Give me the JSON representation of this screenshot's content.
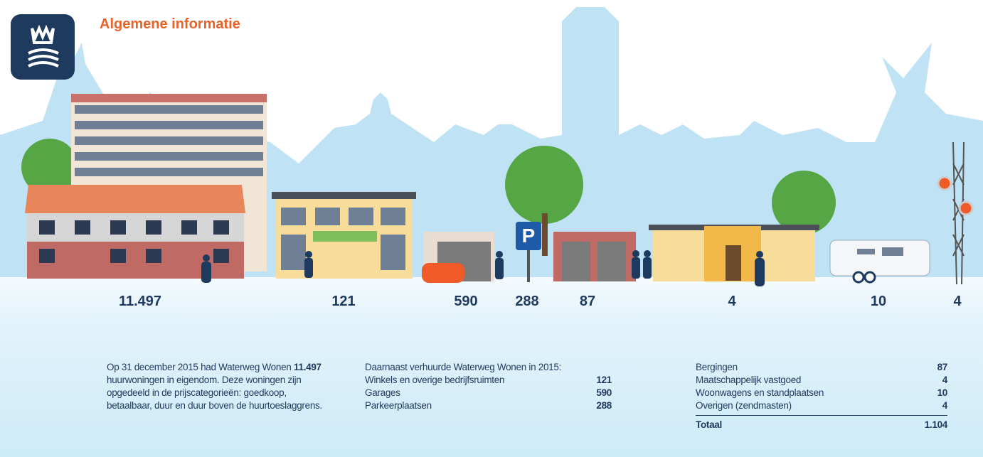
{
  "header": {
    "title": "Algemene informatie",
    "logo": "logo"
  },
  "illustration": {
    "parking_sign": "P",
    "counts": [
      "11.497",
      "121",
      "590",
      "288",
      "87",
      "4",
      "10",
      "4"
    ]
  },
  "intro": {
    "lines": [
      "Op 31 december 2015 had Waterweg Wonen",
      "huurwoningen in eigendom. Deze woningen zijn",
      "opgedeeld in de prijscategorieën: goedkoop,",
      "betaalbaar, duur en duur boven de huurtoeslaggrens."
    ],
    "bold": "11.497"
  },
  "middle": {
    "heading": "Daarnaast verhuurde Waterweg Wonen in 2015:",
    "rows": [
      [
        "Winkels en overige bedrijfsruimten",
        "121"
      ],
      [
        "Garages",
        "590"
      ],
      [
        "Parkeerplaatsen",
        "288"
      ]
    ]
  },
  "right": {
    "rows": [
      [
        "Bergingen",
        "87"
      ],
      [
        "Maatschappelijk vastgoed",
        "4"
      ],
      [
        "Woonwagens en standplaatsen",
        "10"
      ],
      [
        "Overigen (zendmasten)",
        "4"
      ]
    ],
    "total": [
      "Totaal",
      "1.104"
    ]
  }
}
